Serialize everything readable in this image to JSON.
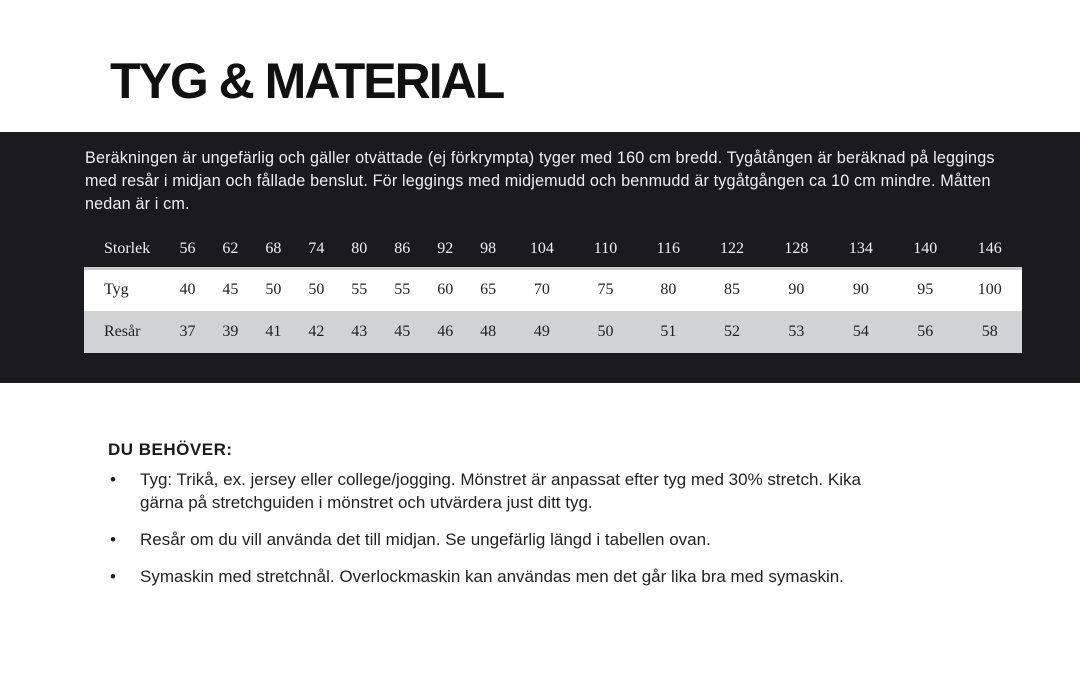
{
  "title": "TYG & MATERIAL",
  "intro": "Beräkningen är ungefärlig och gäller otvättade (ej förkrympta) tyger med 160 cm bredd.  Tygåtången är beräknad på leggings med resår i midjan och fållade benslut. För leggings med midjemudd och benmudd är tygåtgången ca 10 cm mindre. Måtten nedan är i cm.",
  "table": {
    "header": [
      "Storlek",
      "56",
      "62",
      "68",
      "74",
      "80",
      "86",
      "92",
      "98",
      "104",
      "110",
      "116",
      "122",
      "128",
      "134",
      "140",
      "146"
    ],
    "rows": [
      [
        "Tyg",
        "40",
        "45",
        "50",
        "50",
        "55",
        "55",
        "60",
        "65",
        "70",
        "75",
        "80",
        "85",
        "90",
        "90",
        "95",
        "100"
      ],
      [
        "Resår",
        "37",
        "39",
        "41",
        "42",
        "43",
        "45",
        "46",
        "48",
        "49",
        "50",
        "51",
        "52",
        "53",
        "54",
        "56",
        "58"
      ]
    ]
  },
  "needs": {
    "heading": "DU BEHÖVER:",
    "bullet": "•",
    "items": [
      "Tyg: Trikå, ex. jersey eller college/jogging. Mönstret är anpassat efter tyg med 30% stretch. Kika gärna på stretchguiden i mönstret och utvärdera just ditt tyg.",
      "Resår om du vill använda det till midjan. Se ungefärlig längd i tabellen ovan.",
      "Symaskin med stretchnål. Overlockmaskin kan användas men det går lika bra med symaskin."
    ]
  }
}
